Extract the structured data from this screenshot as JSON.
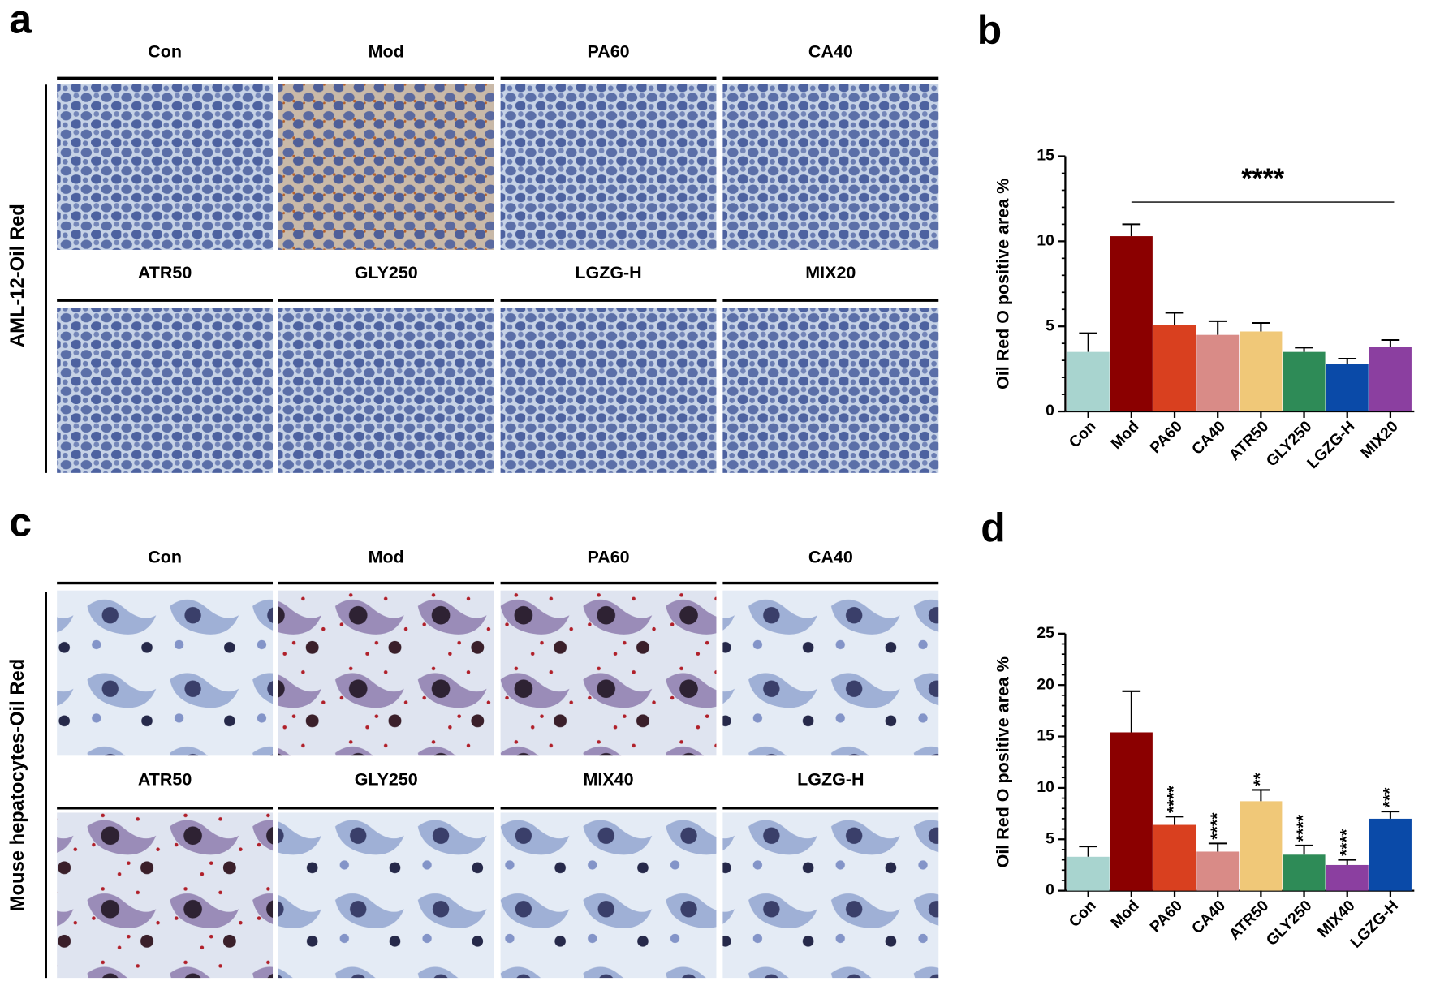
{
  "panel_labels": [
    "a",
    "b",
    "c",
    "d"
  ],
  "panel_a": {
    "row_label": "AML-12-Oil Red",
    "images": [
      "Con",
      "Mod",
      "PA60",
      "CA40",
      "ATR50",
      "GLY250",
      "LGZG-H",
      "MIX20"
    ]
  },
  "panel_c": {
    "row_label": "Mouse hepatocytes-Oil Red",
    "images": [
      "Con",
      "Mod",
      "PA60",
      "CA40",
      "ATR50",
      "GLY250",
      "MIX40",
      "LGZG-H"
    ]
  },
  "chart_data": [
    {
      "type": "bar",
      "ylabel": "Oil Red O positive area %",
      "categories": [
        "Con",
        "Mod",
        "PA60",
        "CA40",
        "ATR50",
        "GLY250",
        "LGZG-H",
        "MIX20"
      ],
      "values": [
        3.5,
        10.3,
        5.1,
        4.5,
        4.7,
        3.5,
        2.8,
        3.8
      ],
      "errors": [
        1.1,
        0.7,
        0.7,
        0.8,
        0.5,
        0.25,
        0.3,
        0.4
      ],
      "colors": [
        "#a8d4cf",
        "#8b0000",
        "#d9401f",
        "#d98b87",
        "#f0c878",
        "#2e8b57",
        "#0a4aa8",
        "#8b3fa0"
      ],
      "ylim": [
        0,
        15
      ],
      "yticks": [
        0,
        5,
        10,
        15
      ],
      "annotation": "****"
    },
    {
      "type": "bar",
      "ylabel": "Oil Red O positive area %",
      "categories": [
        "Con",
        "Mod",
        "PA60",
        "CA40",
        "ATR50",
        "GLY250",
        "MIX40",
        "LGZG-H"
      ],
      "values": [
        3.3,
        15.4,
        6.4,
        3.8,
        8.7,
        3.5,
        2.5,
        7.0
      ],
      "errors": [
        1.0,
        4.0,
        0.8,
        0.8,
        1.1,
        0.9,
        0.5,
        0.7
      ],
      "colors": [
        "#a8d4cf",
        "#8b0000",
        "#d9401f",
        "#d98b87",
        "#f0c878",
        "#2e8b57",
        "#8b3fa0",
        "#0a4aa8"
      ],
      "ylim": [
        0,
        25
      ],
      "yticks": [
        0,
        5,
        10,
        15,
        20,
        25
      ],
      "significance": [
        null,
        null,
        "****",
        "****",
        "**",
        "****",
        "****",
        "***"
      ]
    }
  ]
}
